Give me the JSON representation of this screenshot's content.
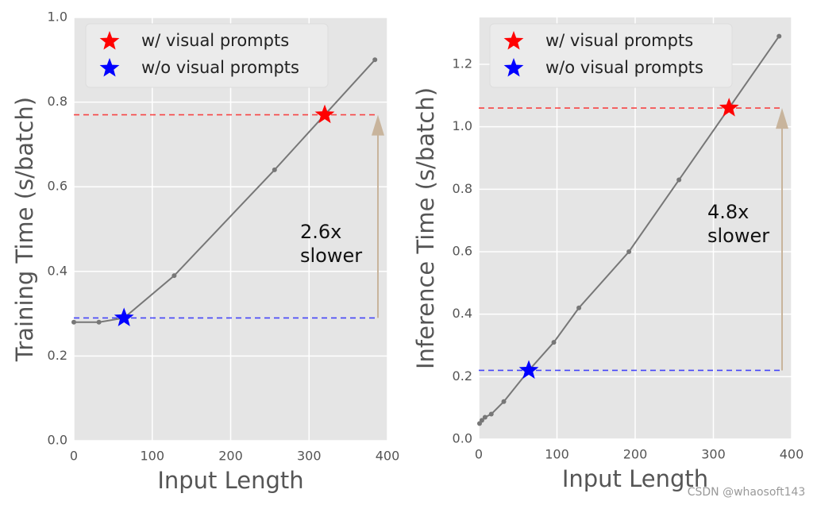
{
  "chart_data": [
    {
      "type": "line",
      "xlabel": "Input Length",
      "ylabel": "Training Time (s/batch)",
      "x": [
        0,
        32,
        64,
        128,
        256,
        384
      ],
      "series": [
        {
          "color": "#777777",
          "values": [
            0.28,
            0.28,
            0.29,
            0.39,
            0.64,
            0.9
          ]
        }
      ],
      "markers": [
        {
          "name": "w/ visual prompts",
          "color": "#ff0000",
          "x": 320,
          "y": 0.77
        },
        {
          "name": "w/o visual prompts",
          "color": "#0000ff",
          "x": 64,
          "y": 0.29
        }
      ],
      "annotation": [
        "2.6x",
        "slower"
      ],
      "xlim": [
        0,
        400
      ],
      "ylim": [
        0,
        1.0
      ],
      "xticks": [
        0,
        100,
        200,
        300,
        400
      ],
      "yticks": [
        {
          "value": 0,
          "label": "0.0"
        },
        0.2,
        0.4,
        0.6,
        0.8,
        {
          "value": 1.0,
          "label": "1.0"
        }
      ],
      "grid": true,
      "legend": "upper left"
    },
    {
      "type": "line",
      "xlabel": "Input Length",
      "ylabel": "Inference Time (s/batch)",
      "x": [
        1,
        4,
        8,
        16,
        32,
        64,
        96,
        128,
        192,
        256,
        384
      ],
      "series": [
        {
          "color": "#777777",
          "values": [
            0.05,
            0.06,
            0.07,
            0.08,
            0.12,
            0.22,
            0.31,
            0.42,
            0.6,
            0.83,
            1.29
          ]
        }
      ],
      "markers": [
        {
          "name": "w/ visual prompts",
          "color": "#ff0000",
          "x": 320,
          "y": 1.06
        },
        {
          "name": "w/o visual prompts",
          "color": "#0000ff",
          "x": 64,
          "y": 0.22
        }
      ],
      "annotation": [
        "4.8x",
        "slower"
      ],
      "xlim": [
        0,
        400
      ],
      "ylim": [
        0,
        1.35
      ],
      "xticks": [
        0,
        100,
        200,
        300,
        400
      ],
      "yticks": [
        {
          "value": 0,
          "label": "0.0"
        },
        0.2,
        0.4,
        0.6,
        0.8,
        {
          "value": 1.0,
          "label": "1.0"
        },
        1.2
      ],
      "grid": true,
      "legend": "upper left"
    }
  ],
  "watermark": "CSDN @whaosoft143"
}
